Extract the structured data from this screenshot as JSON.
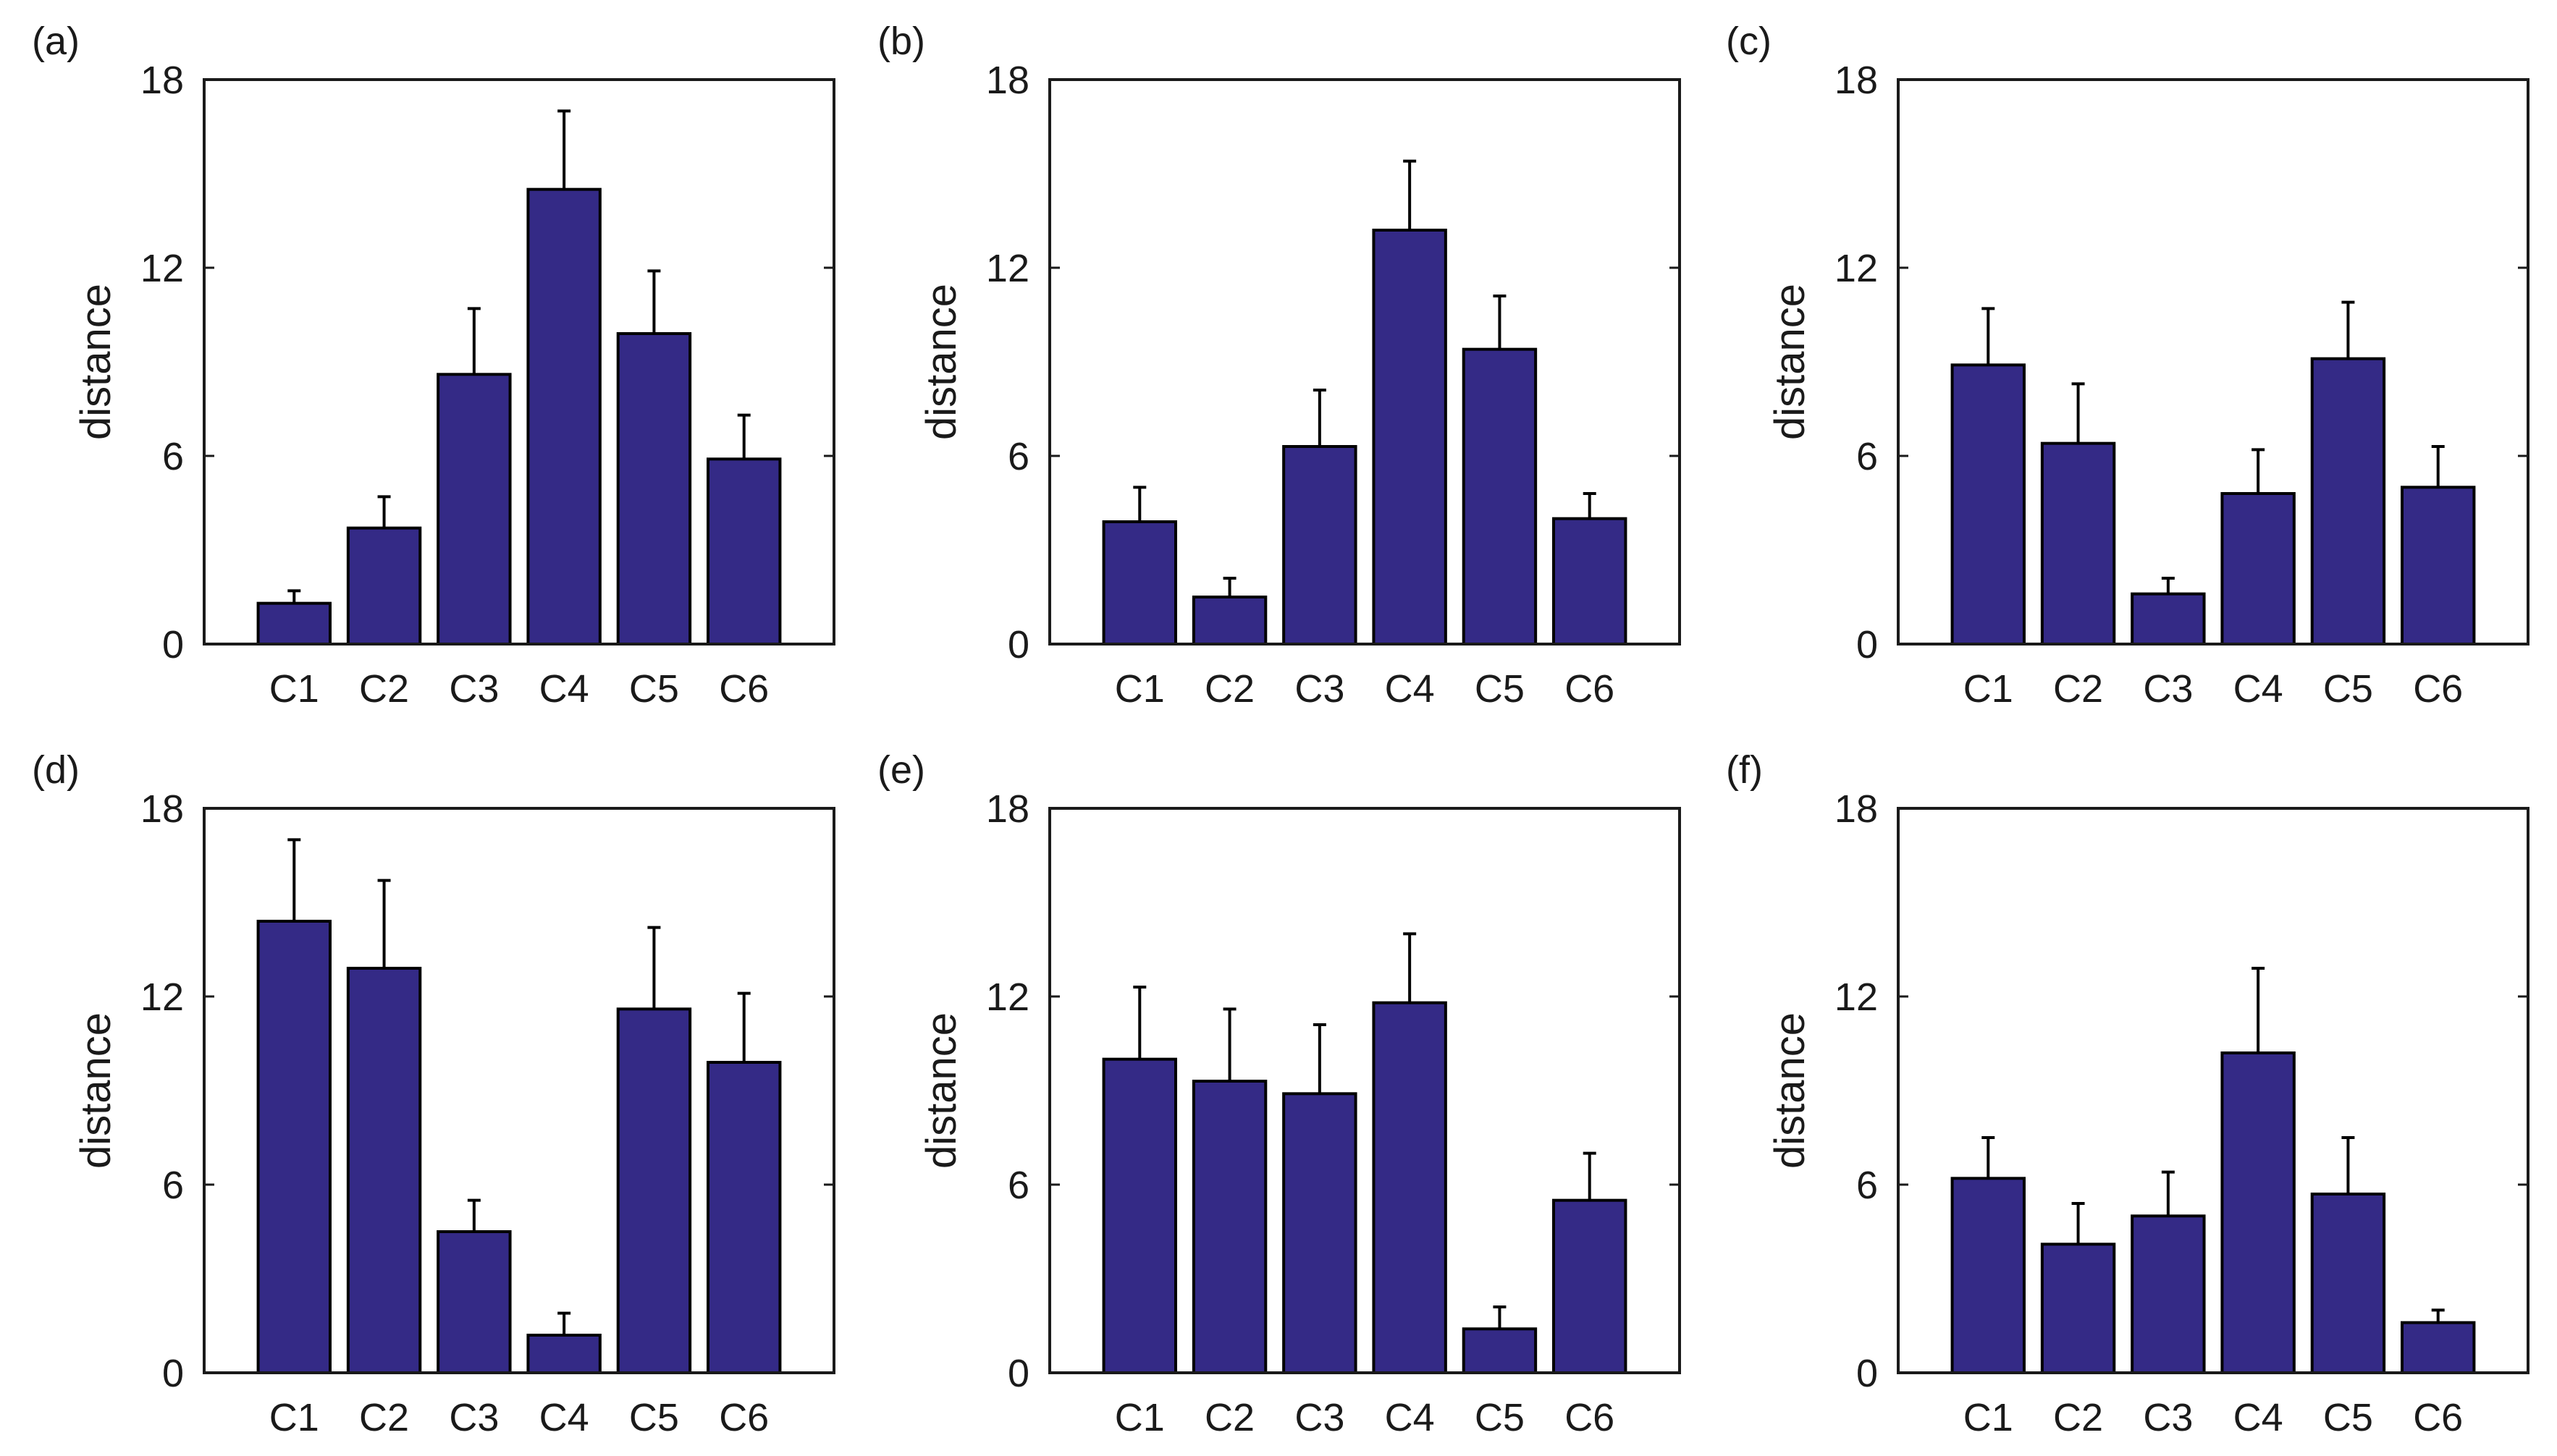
{
  "colors": {
    "bar": "#342a86",
    "edge": "#000000",
    "axis": "#1a1a1a",
    "background": "#ffffff"
  },
  "chart_data": [
    {
      "type": "bar",
      "panel": "(a)",
      "title": "",
      "xlabel": "",
      "ylabel": "distance",
      "categories": [
        "C1",
        "C2",
        "C3",
        "C4",
        "C5",
        "C6"
      ],
      "values": [
        1.3,
        3.7,
        8.6,
        14.5,
        9.9,
        5.9
      ],
      "errors": [
        0.4,
        1.0,
        2.1,
        2.5,
        2.0,
        1.4
      ],
      "ylim": [
        0,
        18
      ],
      "yticks": [
        0,
        6,
        12,
        18
      ],
      "grid": false
    },
    {
      "type": "bar",
      "panel": "(b)",
      "title": "",
      "xlabel": "",
      "ylabel": "distance",
      "categories": [
        "C1",
        "C2",
        "C3",
        "C4",
        "C5",
        "C6"
      ],
      "values": [
        3.9,
        1.5,
        6.3,
        13.2,
        9.4,
        4.0
      ],
      "errors": [
        1.1,
        0.6,
        1.8,
        2.2,
        1.7,
        0.8
      ],
      "ylim": [
        0,
        18
      ],
      "yticks": [
        0,
        6,
        12,
        18
      ],
      "grid": false
    },
    {
      "type": "bar",
      "panel": "(c)",
      "title": "",
      "xlabel": "",
      "ylabel": "distance",
      "categories": [
        "C1",
        "C2",
        "C3",
        "C4",
        "C5",
        "C6"
      ],
      "values": [
        8.9,
        6.4,
        1.6,
        4.8,
        9.1,
        5.0
      ],
      "errors": [
        1.8,
        1.9,
        0.5,
        1.4,
        1.8,
        1.3
      ],
      "ylim": [
        0,
        18
      ],
      "yticks": [
        0,
        6,
        12,
        18
      ],
      "grid": false
    },
    {
      "type": "bar",
      "panel": "(d)",
      "title": "",
      "xlabel": "",
      "ylabel": "distance",
      "categories": [
        "C1",
        "C2",
        "C3",
        "C4",
        "C5",
        "C6"
      ],
      "values": [
        14.4,
        12.9,
        4.5,
        1.2,
        11.6,
        9.9
      ],
      "errors": [
        2.6,
        2.8,
        1.0,
        0.7,
        2.6,
        2.2
      ],
      "ylim": [
        0,
        18
      ],
      "yticks": [
        0,
        6,
        12,
        18
      ],
      "grid": false
    },
    {
      "type": "bar",
      "panel": "(e)",
      "title": "",
      "xlabel": "",
      "ylabel": "distance",
      "categories": [
        "C1",
        "C2",
        "C3",
        "C4",
        "C5",
        "C6"
      ],
      "values": [
        10.0,
        9.3,
        8.9,
        11.8,
        1.4,
        5.5
      ],
      "errors": [
        2.3,
        2.3,
        2.2,
        2.2,
        0.7,
        1.5
      ],
      "ylim": [
        0,
        18
      ],
      "yticks": [
        0,
        6,
        12,
        18
      ],
      "grid": false
    },
    {
      "type": "bar",
      "panel": "(f)",
      "title": "",
      "xlabel": "",
      "ylabel": "distance",
      "categories": [
        "C1",
        "C2",
        "C3",
        "C4",
        "C5",
        "C6"
      ],
      "values": [
        6.2,
        4.1,
        5.0,
        10.2,
        5.7,
        1.6
      ],
      "errors": [
        1.3,
        1.3,
        1.4,
        2.7,
        1.8,
        0.4
      ],
      "ylim": [
        0,
        18
      ],
      "yticks": [
        0,
        6,
        12,
        18
      ],
      "grid": false
    }
  ]
}
